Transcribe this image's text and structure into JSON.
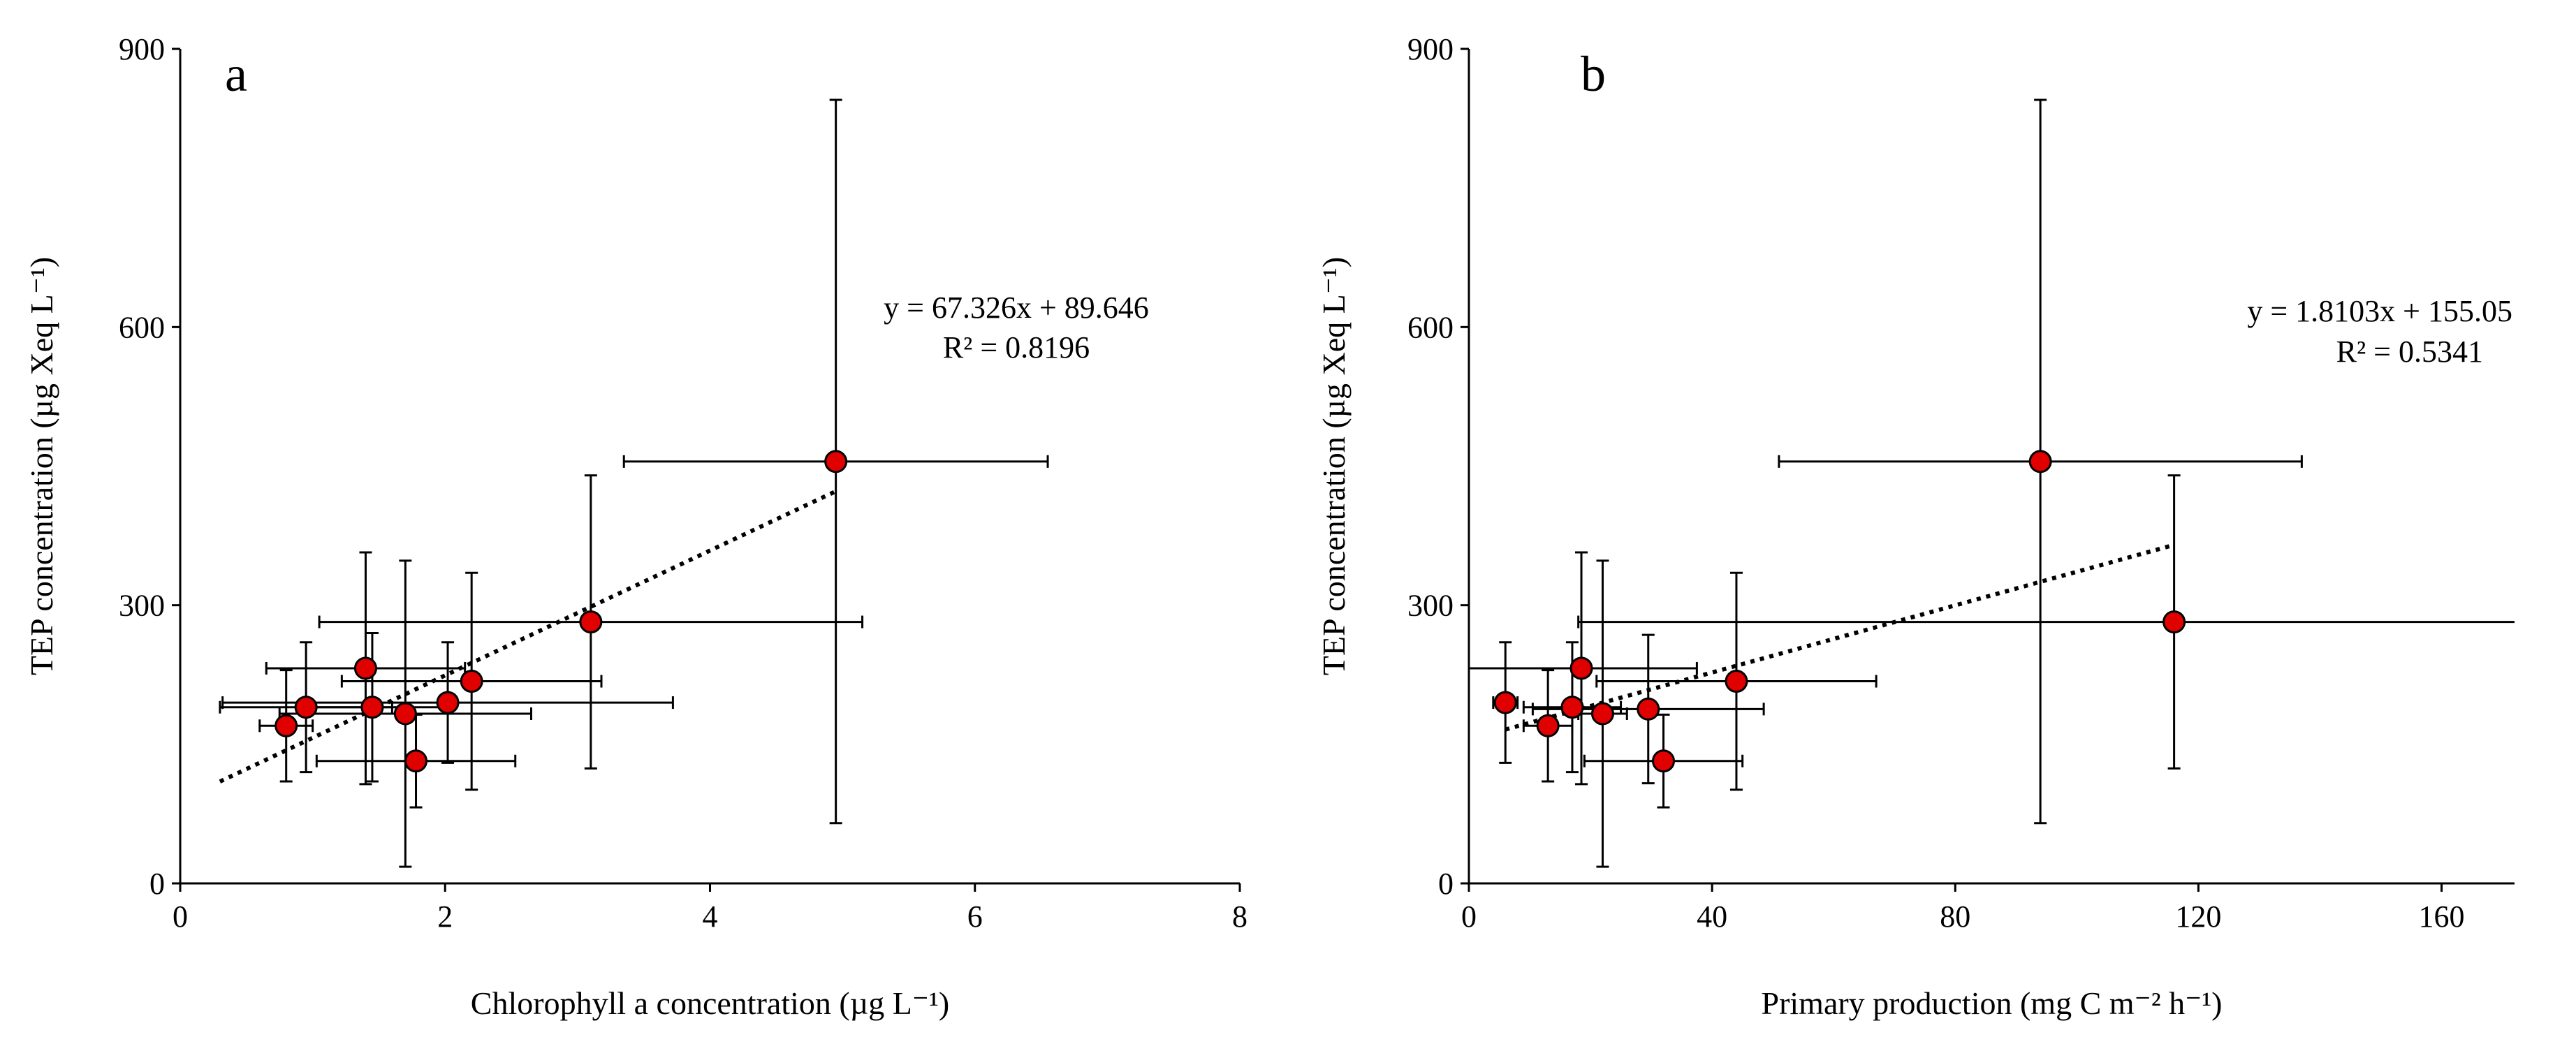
{
  "chart_data": [
    {
      "type": "scatter",
      "panel_label": "a",
      "xlabel": "Chlorophyll a concentration (µg L⁻¹)",
      "ylabel": "TEP concentration (µg Xeq L⁻¹)",
      "xlim": [
        0,
        8
      ],
      "ylim": [
        0,
        900
      ],
      "x_ticks": [
        "0",
        "2",
        "4",
        "6",
        "8"
      ],
      "y_ticks": [
        "0",
        "300",
        "600",
        "900"
      ],
      "grid": false,
      "marker_color": "#e00000",
      "points": [
        {
          "x": 0.8,
          "y": 170,
          "xerr": 0.2,
          "yerr": 60
        },
        {
          "x": 0.95,
          "y": 190,
          "xerr": 0.65,
          "yerr": 70
        },
        {
          "x": 1.4,
          "y": 232,
          "xerr": 0.75,
          "yerr": 125
        },
        {
          "x": 1.45,
          "y": 190,
          "xerr": 0.55,
          "yerr": 80
        },
        {
          "x": 1.7,
          "y": 183,
          "xerr": 0.95,
          "yerr": 165
        },
        {
          "x": 1.78,
          "y": 132,
          "xerr": 0.75,
          "yerr": 50
        },
        {
          "x": 2.02,
          "y": 195,
          "xerr": 1.7,
          "yerr": 65
        },
        {
          "x": 2.2,
          "y": 218,
          "xerr": 0.98,
          "yerr": 117
        },
        {
          "x": 3.1,
          "y": 282,
          "xerr": 2.05,
          "yerr": 158
        },
        {
          "x": 4.95,
          "y": 455,
          "xerr": 1.6,
          "yerr": 390
        }
      ],
      "trendline": {
        "slope": 67.326,
        "intercept": 89.646,
        "x_range": [
          0.3,
          4.95
        ],
        "style": "dotted"
      },
      "equation": "y = 67.326x + 89.646",
      "r_squared": "R² = 0.8196"
    },
    {
      "type": "scatter",
      "panel_label": "b",
      "xlabel": "Primary production (mg C m⁻² h⁻¹)",
      "ylabel": "TEP concentration (µg Xeq L⁻¹)",
      "xlim": [
        0,
        172
      ],
      "ylim": [
        0,
        900
      ],
      "x_ticks": [
        "0",
        "40",
        "80",
        "120",
        "160"
      ],
      "x_tick_values": [
        0,
        40,
        80,
        120,
        160
      ],
      "y_ticks": [
        "0",
        "300",
        "600",
        "900"
      ],
      "grid": false,
      "marker_color": "#e00000",
      "points": [
        {
          "x": 6,
          "y": 195,
          "xerr": 2,
          "yerr": 65
        },
        {
          "x": 13,
          "y": 170,
          "xerr": 4,
          "yerr": 60
        },
        {
          "x": 17,
          "y": 190,
          "xerr": 8,
          "yerr": 70
        },
        {
          "x": 18.5,
          "y": 232,
          "xerr": 19,
          "yerr": 125
        },
        {
          "x": 22,
          "y": 183,
          "xerr": 4,
          "yerr": 165
        },
        {
          "x": 29.5,
          "y": 188,
          "xerr": 19,
          "yerr": 80
        },
        {
          "x": 32,
          "y": 132,
          "xerr": 13,
          "yerr": 50
        },
        {
          "x": 44,
          "y": 218,
          "xerr": 23,
          "yerr": 117
        },
        {
          "x": 94,
          "y": 455,
          "xerr": 43,
          "yerr": 390
        },
        {
          "x": 116,
          "y": 282,
          "xerr": 98,
          "yerr": 158
        }
      ],
      "trendline": {
        "slope": 1.8103,
        "intercept": 155.05,
        "x_range": [
          6,
          116
        ],
        "style": "dotted"
      },
      "equation": "y = 1.8103x + 155.05",
      "r_squared": "R² = 0.5341"
    }
  ]
}
